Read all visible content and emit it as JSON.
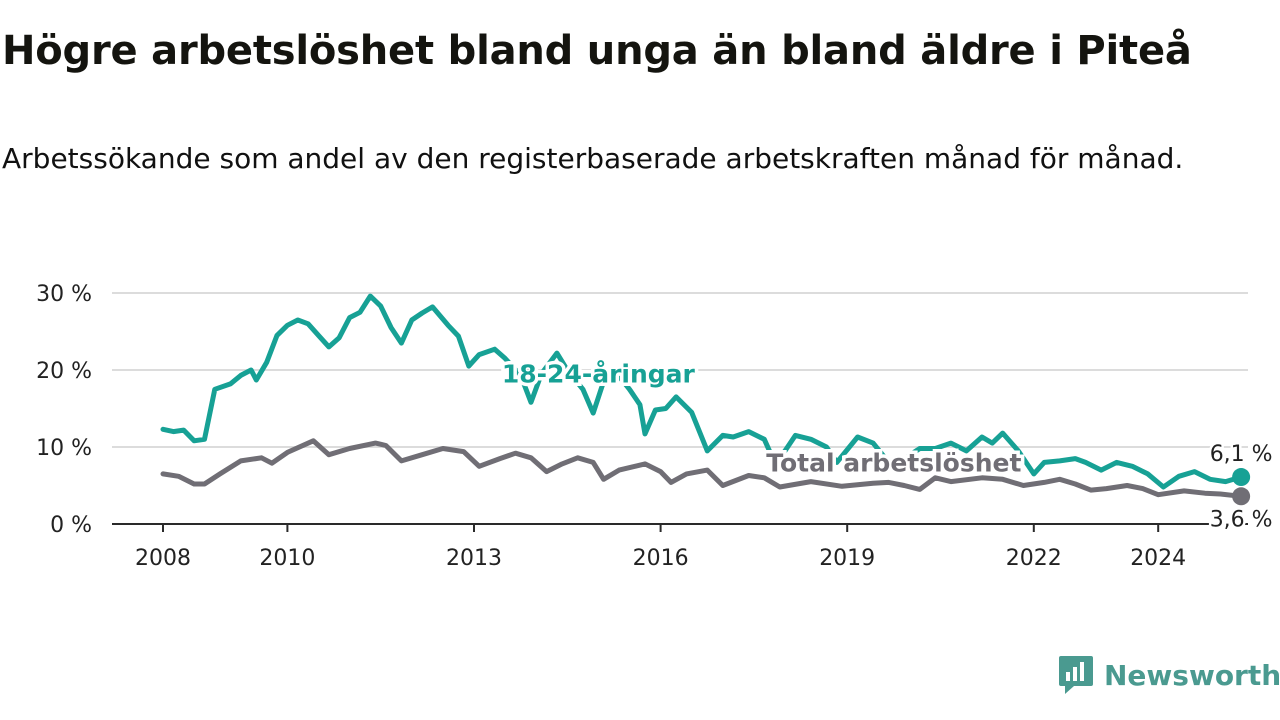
{
  "title": "Högre arbetslöshet bland unga än bland äldre i Piteå",
  "subtitle": "Arbetssökande som andel av den registerbaserade arbetskraften månad för månad.",
  "brand": {
    "name": "Newsworthy",
    "color": "#4a9a90"
  },
  "chart_data": {
    "type": "line",
    "title": "Högre arbetslöshet bland unga än bland äldre i Piteå",
    "subtitle": "Arbetssökande som andel av den registerbaserade arbetskraften månad för månad.",
    "xlabel": "",
    "ylabel": "",
    "x_ticks": [
      "2008",
      "2010",
      "2013",
      "2016",
      "2019",
      "2022",
      "2024"
    ],
    "y_ticks": [
      "0 %",
      "10 %",
      "20 %",
      "30 %"
    ],
    "ylim": [
      0,
      30
    ],
    "xlim": [
      "2008-01",
      "2025-06"
    ],
    "grid": true,
    "series": [
      {
        "name": "18-24-åringar",
        "color": "#17a195",
        "end_label": "6,1 %",
        "points": [
          [
            "2008-01",
            12.3
          ],
          [
            "2008-03",
            12.0
          ],
          [
            "2008-05",
            12.2
          ],
          [
            "2008-07",
            10.8
          ],
          [
            "2008-09",
            11.0
          ],
          [
            "2008-11",
            17.5
          ],
          [
            "2009-02",
            18.2
          ],
          [
            "2009-04",
            19.3
          ],
          [
            "2009-06",
            20.0
          ],
          [
            "2009-07",
            18.7
          ],
          [
            "2009-09",
            21.0
          ],
          [
            "2009-11",
            24.5
          ],
          [
            "2010-01",
            25.8
          ],
          [
            "2010-03",
            26.5
          ],
          [
            "2010-05",
            26.0
          ],
          [
            "2010-07",
            24.5
          ],
          [
            "2010-09",
            23.0
          ],
          [
            "2010-11",
            24.2
          ],
          [
            "2011-01",
            26.8
          ],
          [
            "2011-03",
            27.5
          ],
          [
            "2011-05",
            29.6
          ],
          [
            "2011-07",
            28.3
          ],
          [
            "2011-09",
            25.5
          ],
          [
            "2011-11",
            23.5
          ],
          [
            "2012-01",
            26.5
          ],
          [
            "2012-03",
            27.4
          ],
          [
            "2012-05",
            28.2
          ],
          [
            "2012-08",
            25.8
          ],
          [
            "2012-10",
            24.4
          ],
          [
            "2012-12",
            20.5
          ],
          [
            "2013-02",
            22.0
          ],
          [
            "2013-05",
            22.7
          ],
          [
            "2013-07",
            21.5
          ],
          [
            "2013-10",
            19.3
          ],
          [
            "2013-12",
            15.8
          ],
          [
            "2014-02",
            19.5
          ],
          [
            "2014-05",
            22.2
          ],
          [
            "2014-07",
            20.0
          ],
          [
            "2014-10",
            17.5
          ],
          [
            "2014-12",
            14.4
          ],
          [
            "2015-02",
            18.5
          ],
          [
            "2015-04",
            20.0
          ],
          [
            "2015-07",
            17.5
          ],
          [
            "2015-09",
            15.5
          ],
          [
            "2015-10",
            11.7
          ],
          [
            "2015-12",
            14.8
          ],
          [
            "2016-02",
            15.0
          ],
          [
            "2016-04",
            16.5
          ],
          [
            "2016-07",
            14.5
          ],
          [
            "2016-10",
            9.5
          ],
          [
            "2017-01",
            11.5
          ],
          [
            "2017-03",
            11.3
          ],
          [
            "2017-06",
            12.0
          ],
          [
            "2017-09",
            11.0
          ],
          [
            "2017-11",
            8.0
          ],
          [
            "2018-01",
            9.5
          ],
          [
            "2018-03",
            11.5
          ],
          [
            "2018-06",
            11.0
          ],
          [
            "2018-09",
            10.0
          ],
          [
            "2018-11",
            8.0
          ],
          [
            "2019-03",
            11.3
          ],
          [
            "2019-06",
            10.5
          ],
          [
            "2019-09",
            8.0
          ],
          [
            "2019-12",
            8.5
          ],
          [
            "2020-03",
            9.8
          ],
          [
            "2020-06",
            9.8
          ],
          [
            "2020-09",
            10.5
          ],
          [
            "2020-12",
            9.5
          ],
          [
            "2021-03",
            11.3
          ],
          [
            "2021-05",
            10.5
          ],
          [
            "2021-07",
            11.8
          ],
          [
            "2021-10",
            9.5
          ],
          [
            "2022-01",
            6.5
          ],
          [
            "2022-03",
            8.0
          ],
          [
            "2022-06",
            8.2
          ],
          [
            "2022-09",
            8.5
          ],
          [
            "2022-11",
            8.0
          ],
          [
            "2023-02",
            7.0
          ],
          [
            "2023-05",
            8.0
          ],
          [
            "2023-08",
            7.5
          ],
          [
            "2023-11",
            6.5
          ],
          [
            "2024-02",
            4.8
          ],
          [
            "2024-05",
            6.2
          ],
          [
            "2024-08",
            6.8
          ],
          [
            "2024-11",
            5.8
          ],
          [
            "2025-02",
            5.5
          ],
          [
            "2025-05",
            6.1
          ]
        ]
      },
      {
        "name": "Total arbetslöshet",
        "color": "#706e75",
        "end_label": "3,6 %",
        "points": [
          [
            "2008-01",
            6.5
          ],
          [
            "2008-04",
            6.2
          ],
          [
            "2008-07",
            5.2
          ],
          [
            "2008-09",
            5.2
          ],
          [
            "2008-12",
            6.5
          ],
          [
            "2009-04",
            8.2
          ],
          [
            "2009-08",
            8.6
          ],
          [
            "2009-10",
            7.9
          ],
          [
            "2010-01",
            9.3
          ],
          [
            "2010-06",
            10.8
          ],
          [
            "2010-09",
            9.0
          ],
          [
            "2011-01",
            9.8
          ],
          [
            "2011-06",
            10.5
          ],
          [
            "2011-08",
            10.2
          ],
          [
            "2011-11",
            8.2
          ],
          [
            "2012-03",
            9.0
          ],
          [
            "2012-07",
            9.8
          ],
          [
            "2012-11",
            9.4
          ],
          [
            "2013-02",
            7.5
          ],
          [
            "2013-06",
            8.5
          ],
          [
            "2013-09",
            9.2
          ],
          [
            "2013-12",
            8.6
          ],
          [
            "2014-03",
            6.8
          ],
          [
            "2014-06",
            7.8
          ],
          [
            "2014-09",
            8.6
          ],
          [
            "2014-12",
            8.0
          ],
          [
            "2015-02",
            5.8
          ],
          [
            "2015-05",
            7.0
          ],
          [
            "2015-10",
            7.8
          ],
          [
            "2016-01",
            6.8
          ],
          [
            "2016-03",
            5.4
          ],
          [
            "2016-06",
            6.5
          ],
          [
            "2016-10",
            7.0
          ],
          [
            "2017-01",
            5.0
          ],
          [
            "2017-06",
            6.3
          ],
          [
            "2017-09",
            6.0
          ],
          [
            "2017-12",
            4.8
          ],
          [
            "2018-06",
            5.5
          ],
          [
            "2018-12",
            4.9
          ],
          [
            "2019-06",
            5.3
          ],
          [
            "2019-09",
            5.4
          ],
          [
            "2019-12",
            5.0
          ],
          [
            "2020-03",
            4.5
          ],
          [
            "2020-06",
            6.0
          ],
          [
            "2020-09",
            5.5
          ],
          [
            "2021-03",
            6.0
          ],
          [
            "2021-07",
            5.8
          ],
          [
            "2021-11",
            5.0
          ],
          [
            "2022-03",
            5.4
          ],
          [
            "2022-06",
            5.8
          ],
          [
            "2022-09",
            5.2
          ],
          [
            "2022-12",
            4.4
          ],
          [
            "2023-03",
            4.6
          ],
          [
            "2023-07",
            5.0
          ],
          [
            "2023-10",
            4.6
          ],
          [
            "2024-01",
            3.8
          ],
          [
            "2024-06",
            4.3
          ],
          [
            "2024-10",
            4.0
          ],
          [
            "2025-01",
            3.9
          ],
          [
            "2025-05",
            3.6
          ]
        ]
      }
    ],
    "annotations": [
      {
        "text": "18-24-åringar",
        "series": "18-24-åringar",
        "x": "2015-01",
        "y": 18.4
      },
      {
        "text": "Total arbetslöshet",
        "series": "Total arbetslöshet",
        "x": "2019-10",
        "y": 6.8
      }
    ]
  }
}
